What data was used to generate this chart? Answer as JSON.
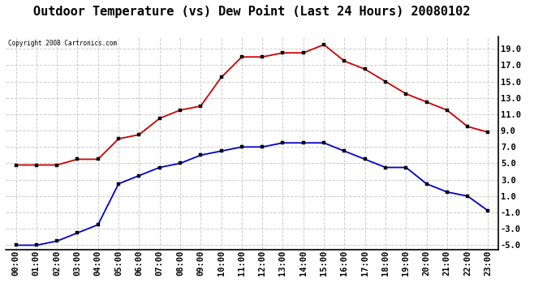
{
  "title": "Outdoor Temperature (vs) Dew Point (Last 24 Hours) 20080102",
  "copyright": "Copyright 2008 Cartronics.com",
  "hours": [
    "00:00",
    "01:00",
    "02:00",
    "03:00",
    "04:00",
    "05:00",
    "06:00",
    "07:00",
    "08:00",
    "09:00",
    "10:00",
    "11:00",
    "12:00",
    "13:00",
    "14:00",
    "15:00",
    "16:00",
    "17:00",
    "18:00",
    "19:00",
    "20:00",
    "21:00",
    "22:00",
    "23:00"
  ],
  "temp": [
    4.8,
    4.8,
    4.8,
    5.5,
    5.5,
    8.0,
    8.5,
    10.5,
    11.5,
    12.0,
    15.5,
    18.0,
    18.0,
    18.5,
    18.5,
    19.5,
    17.5,
    16.5,
    15.0,
    13.5,
    12.5,
    11.5,
    9.5,
    8.8
  ],
  "dew": [
    -5.0,
    -5.0,
    -4.5,
    -3.5,
    -2.5,
    2.5,
    3.5,
    4.5,
    5.0,
    6.0,
    6.5,
    7.0,
    7.0,
    7.5,
    7.5,
    7.5,
    6.5,
    5.5,
    4.5,
    4.5,
    2.5,
    1.5,
    1.0,
    -0.8
  ],
  "temp_color": "#cc0000",
  "dew_color": "#0000cc",
  "ylim": [
    -5.5,
    20.5
  ],
  "yticks": [
    -5.0,
    -3.0,
    -1.0,
    1.0,
    3.0,
    5.0,
    7.0,
    9.0,
    11.0,
    13.0,
    15.0,
    17.0,
    19.0
  ],
  "grid_color": "#cccccc",
  "bg_color": "#ffffff",
  "plot_bg": "#ffffff",
  "marker_size": 3.5,
  "title_fontsize": 11,
  "tick_fontsize": 7.5
}
